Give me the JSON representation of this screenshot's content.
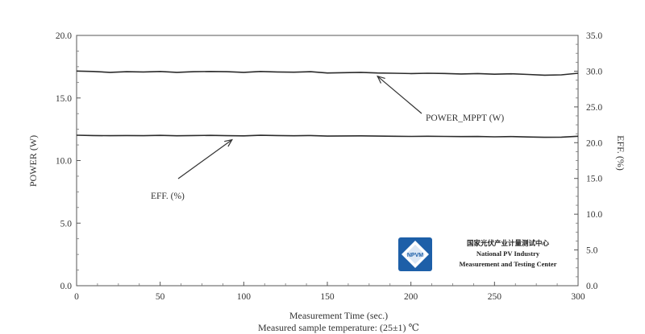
{
  "chart_data": {
    "type": "line",
    "xlabel": "Measurement Time (sec.)",
    "subtitle": "Measured sample temperature: (25±1) ℃",
    "ylabel_left": "POWER (W)",
    "ylabel_right": "EFF. (%)",
    "xlim": [
      0,
      300
    ],
    "ylim_left": [
      0,
      20
    ],
    "ylim_right": [
      0,
      35
    ],
    "x_ticks": [
      "0",
      "50",
      "100",
      "150",
      "200",
      "250",
      "300"
    ],
    "y_ticks_left": [
      "0.0",
      "5.0",
      "10.0",
      "15.0",
      "20.0"
    ],
    "y_ticks_right": [
      "0.0",
      "5.0",
      "10.0",
      "15.0",
      "20.0",
      "25.0",
      "30.0",
      "35.0"
    ],
    "grid": false,
    "series": [
      {
        "name": "POWER_MPPT (W)",
        "axis": "left",
        "color": "#2b2b2b",
        "x": [
          0,
          10,
          20,
          30,
          40,
          50,
          60,
          70,
          80,
          90,
          100,
          110,
          120,
          130,
          140,
          150,
          160,
          170,
          180,
          190,
          200,
          210,
          220,
          230,
          240,
          250,
          260,
          270,
          280,
          290,
          300
        ],
        "y": [
          17.15,
          17.12,
          17.05,
          17.1,
          17.08,
          17.12,
          17.05,
          17.1,
          17.12,
          17.1,
          17.05,
          17.12,
          17.08,
          17.06,
          17.1,
          17.0,
          17.02,
          17.05,
          17.0,
          16.98,
          16.95,
          16.98,
          16.96,
          16.92,
          16.95,
          16.9,
          16.93,
          16.88,
          16.82,
          16.85,
          16.98
        ]
      },
      {
        "name": "EFF. (%)",
        "axis": "right",
        "color": "#2b2b2b",
        "x": [
          0,
          10,
          20,
          30,
          40,
          50,
          60,
          70,
          80,
          90,
          100,
          110,
          120,
          130,
          140,
          150,
          160,
          170,
          180,
          190,
          200,
          210,
          220,
          230,
          240,
          250,
          260,
          270,
          280,
          290,
          300
        ],
        "y": [
          21.05,
          21.0,
          20.98,
          21.0,
          20.98,
          21.02,
          20.97,
          21.0,
          21.02,
          20.98,
          20.96,
          21.03,
          21.0,
          20.97,
          21.0,
          20.92,
          20.94,
          20.96,
          20.92,
          20.9,
          20.88,
          20.9,
          20.88,
          20.85,
          20.87,
          20.82,
          20.85,
          20.8,
          20.75,
          20.78,
          20.9
        ]
      }
    ],
    "annotations": [
      {
        "text": "POWER_MPPT (W)",
        "points_to_x": 180,
        "points_to_series": 0
      },
      {
        "text": "EFF. (%)",
        "points_to_x": 93,
        "points_to_series": 1
      }
    ]
  },
  "logo": {
    "abbr": "NPVM",
    "name_cn": "国家光伏产业计量测试中心",
    "name_en_line1": "National PV Industry",
    "name_en_line2": "Measurement and Testing Center",
    "primary_color": "#1d5fa8"
  }
}
